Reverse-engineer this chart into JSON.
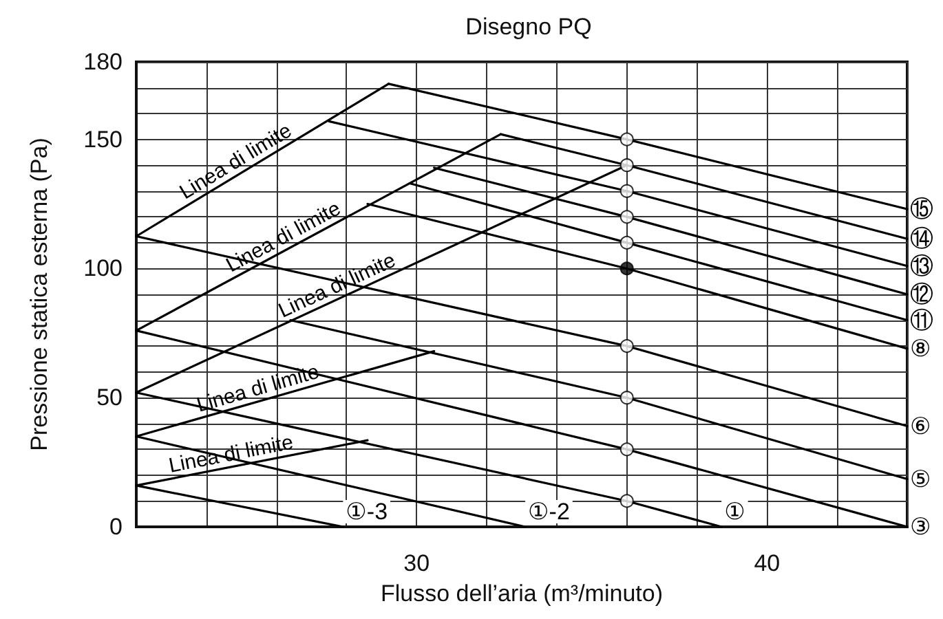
{
  "chart_data": {
    "type": "line",
    "title": "Disegno PQ",
    "xlabel": "Flusso dell’aria (m³/minuto)",
    "ylabel": "Pressione statica esterna (Pa)",
    "xlim": [
      22,
      44
    ],
    "ylim": [
      0,
      180
    ],
    "xticks": [
      {
        "value": 22,
        "label": null
      },
      {
        "value": 24,
        "label": null
      },
      {
        "value": 26,
        "label": null
      },
      {
        "value": 28,
        "label": null
      },
      30,
      {
        "value": 32,
        "label": null
      },
      {
        "value": 34,
        "label": null
      },
      {
        "value": 36,
        "label": null
      },
      {
        "value": 38,
        "label": null
      },
      40,
      {
        "value": 42,
        "label": null
      },
      {
        "value": 44,
        "label": null
      }
    ],
    "yticks": [
      0,
      {
        "value": 10,
        "label": null
      },
      {
        "value": 20,
        "label": null
      },
      {
        "value": 30,
        "label": null
      },
      {
        "value": 40,
        "label": null
      },
      50,
      {
        "value": 60,
        "label": null
      },
      {
        "value": 70,
        "label": null
      },
      {
        "value": 80,
        "label": null
      },
      {
        "value": 90,
        "label": null
      },
      100,
      {
        "value": 110,
        "label": null
      },
      {
        "value": 120,
        "label": null
      },
      {
        "value": 130,
        "label": null
      },
      {
        "value": 140,
        "label": null
      },
      150,
      {
        "value": 160,
        "label": null
      },
      {
        "value": 170,
        "label": null
      },
      180
    ],
    "grid": true,
    "marker": "none",
    "line_style": "solid",
    "series": [
      {
        "name": "⑮",
        "color": "#000000",
        "x": [
          29.2,
          36,
          44
        ],
        "values": [
          171.5,
          150,
          123
        ]
      },
      {
        "name": "⑭",
        "color": "#000000",
        "x": [
          32.4,
          36,
          44
        ],
        "values": [
          152,
          140,
          111.5
        ]
      },
      {
        "name": "⑬",
        "color": "#000000",
        "x": [
          27.5,
          36,
          44
        ],
        "values": [
          157,
          130,
          101
        ]
      },
      {
        "name": "⑫",
        "color": "#000000",
        "x": [
          30.5,
          36,
          44
        ],
        "values": [
          139,
          120,
          90
        ]
      },
      {
        "name": "⑪",
        "color": "#000000",
        "x": [
          29.8,
          36,
          44
        ],
        "values": [
          133,
          110,
          80
        ]
      },
      {
        "name": "⑧",
        "color": "#000000",
        "x": [
          28.6,
          36,
          44
        ],
        "values": [
          125,
          100,
          69
        ]
      },
      {
        "name": "⑥",
        "color": "#000000",
        "x": [
          22,
          36,
          44
        ],
        "values": [
          112.5,
          70,
          39
        ]
      },
      {
        "name": "⑤",
        "color": "#000000",
        "x": [
          26.4,
          36,
          44
        ],
        "values": [
          80,
          50,
          18.5
        ]
      },
      {
        "name": "③",
        "color": "#000000",
        "x": [
          22,
          36,
          44
        ],
        "values": [
          76,
          30,
          0
        ]
      },
      {
        "name": "①",
        "color": "#000000",
        "x": [
          22,
          36,
          38.7
        ],
        "values": [
          52,
          10,
          0
        ]
      },
      {
        "name": "①-2",
        "color": "#000000",
        "x": [
          22,
          33.1
        ],
        "values": [
          35,
          0
        ]
      },
      {
        "name": "①-3",
        "color": "#000000",
        "x": [
          22,
          27.9
        ],
        "values": [
          16,
          0
        ]
      },
      {
        "name": "Linea di limite",
        "color": "#000000",
        "x": [
          22,
          29.2
        ],
        "values": [
          112.5,
          171.5
        ]
      },
      {
        "name": "Linea di limite",
        "color": "#000000",
        "x": [
          22,
          32.4
        ],
        "values": [
          76,
          152
        ]
      },
      {
        "name": "Linea di limite",
        "color": "#000000",
        "x": [
          22,
          36
        ],
        "values": [
          52,
          140
        ]
      },
      {
        "name": "Linea di limite",
        "color": "#000000",
        "x": [
          22,
          30.5
        ],
        "values": [
          35,
          68
        ]
      },
      {
        "name": "Linea di limite",
        "color": "#000000",
        "x": [
          22,
          28.6
        ],
        "values": [
          16,
          33.5
        ]
      },
      {
        "type": "scatter",
        "marker": "circle",
        "color": "#ffffff",
        "x": [
          36,
          36,
          36,
          36,
          36,
          36,
          36,
          36,
          36
        ],
        "values": [
          150,
          140,
          130,
          120,
          110,
          70,
          50,
          30,
          10
        ]
      },
      {
        "type": "scatter",
        "marker": "circle",
        "color": "#000000",
        "x": [
          36
        ],
        "values": [
          100
        ]
      }
    ]
  }
}
